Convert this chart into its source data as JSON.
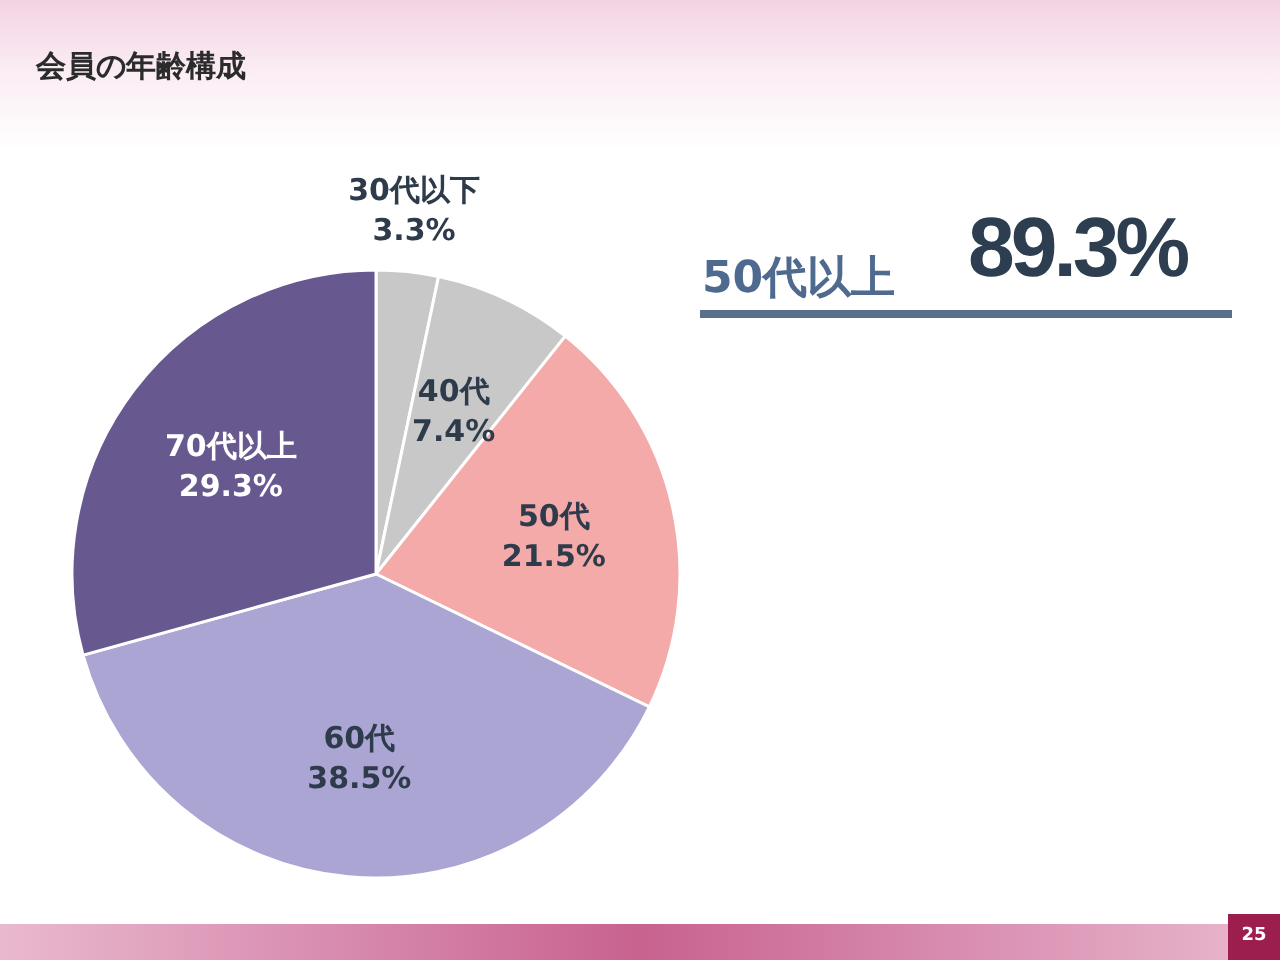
{
  "chart_data": {
    "type": "pie",
    "title": "会員の年齢構成",
    "categories": [
      "30代以下",
      "40代",
      "50代",
      "60代",
      "70代以上"
    ],
    "values": [
      3.3,
      7.4,
      21.5,
      38.5,
      29.3
    ],
    "colors": [
      "#c8c8c8",
      "#c8c8c8",
      "#f4aaa9",
      "#aba5d3",
      "#675890"
    ],
    "value_labels": [
      "3.3%",
      "7.4%",
      "21.5%",
      "38.5%",
      "29.3%"
    ],
    "annotations": [
      "50代以上",
      "89.3%",
      "25"
    ]
  }
}
